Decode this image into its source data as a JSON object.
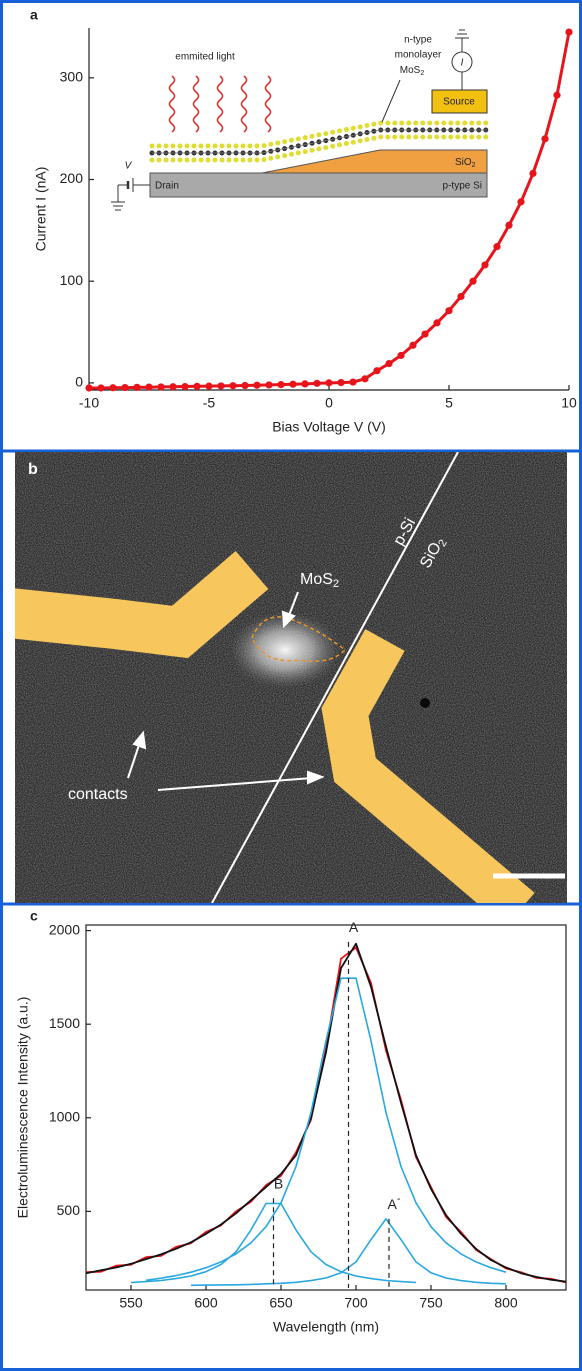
{
  "chart_data": [
    {
      "type": "scatter",
      "panel_label": "a",
      "x_label": "Bias Voltage V (V)",
      "y_label": "Current I (nA)",
      "color": "#e8141c",
      "frame": false,
      "x": [
        -10,
        -9.5,
        -9,
        -8.5,
        -8,
        -7.5,
        -7,
        -6.5,
        -6,
        -5.5,
        -5,
        -4.5,
        -4,
        -3.5,
        -3,
        -2.5,
        -2,
        -1.5,
        -1,
        -0.5,
        0,
        0.5,
        1,
        1.5,
        2,
        2.5,
        3,
        3.5,
        4,
        4.5,
        5,
        5.5,
        6,
        6.5,
        7,
        7.5,
        8,
        8.5,
        9,
        9.5,
        10
      ],
      "values": [
        -5,
        -5,
        -4.8,
        -4.6,
        -4.4,
        -4.2,
        -4,
        -3.8,
        -3.6,
        -3.4,
        -3.2,
        -3,
        -2.8,
        -2.6,
        -2.3,
        -2,
        -1.7,
        -1.3,
        -1,
        -0.5,
        0,
        0.3,
        0.8,
        4,
        12,
        19,
        27,
        37,
        48,
        59,
        71,
        85,
        100,
        116,
        134,
        155,
        178,
        206,
        240,
        283,
        345
      ],
      "xlim": [
        -10,
        10
      ],
      "ylim": [
        -7,
        349
      ],
      "xticks": [
        -10,
        -5,
        0,
        5,
        10
      ],
      "yticks": [
        0,
        100,
        200,
        300
      ],
      "inset": {
        "light": "emmited light",
        "layer_lines": [
          "n-type",
          "monolayer"
        ],
        "layer_formula": {
          "text": "MoS",
          "sub": "2"
        },
        "source": "Source",
        "oxide": {
          "text": "SiO",
          "sub": "2"
        },
        "drain": "Drain",
        "substrate": "p-type Si",
        "voltage": "V",
        "current": "I"
      }
    },
    {
      "type": "line",
      "panel_label": "c",
      "x_label": "Wavelength (nm)",
      "y_label": "Electroluminescence Intensity (a.u.)",
      "frame": true,
      "x": [
        520,
        530,
        540,
        550,
        560,
        570,
        580,
        590,
        600,
        610,
        620,
        630,
        640,
        650,
        660,
        670,
        680,
        690,
        700,
        710,
        720,
        730,
        740,
        750,
        760,
        770,
        780,
        790,
        800,
        810,
        820,
        830,
        840
      ],
      "series": [
        {
          "color": "#e8141c",
          "values": [
            175,
            178,
            210,
            215,
            255,
            262,
            310,
            330,
            390,
            425,
            500,
            552,
            640,
            690,
            815,
            990,
            1370,
            1850,
            1910,
            1720,
            1360,
            1095,
            790,
            630,
            470,
            390,
            295,
            245,
            195,
            175,
            145,
            140,
            120
          ]
        },
        {
          "color": "#111111",
          "values": [
            170,
            185,
            200,
            220,
            245,
            270,
            300,
            335,
            380,
            430,
            490,
            560,
            630,
            700,
            800,
            1000,
            1350,
            1800,
            1930,
            1700,
            1380,
            1080,
            800,
            620,
            480,
            380,
            300,
            240,
            200,
            170,
            150,
            135,
            125
          ]
        },
        {
          "color": "#29a8e0",
          "values": [
            null,
            null,
            null,
            120,
            125,
            131,
            141,
            155,
            178,
            216,
            284,
            401,
            542,
            542,
            401,
            284,
            216,
            178,
            155,
            141,
            131,
            125,
            120,
            null,
            null,
            null,
            null,
            null,
            null,
            null,
            null,
            null,
            null
          ]
        },
        {
          "color": "#29a8e0",
          "values": [
            null,
            null,
            null,
            null,
            132,
            143,
            157,
            175,
            199,
            230,
            273,
            332,
            418,
            546,
            740,
            1028,
            1412,
            1746,
            1746,
            1412,
            1028,
            740,
            546,
            418,
            332,
            273,
            230,
            199,
            175,
            null,
            null,
            null,
            null
          ]
        },
        {
          "color": "#29a8e0",
          "values": [
            null,
            null,
            null,
            null,
            null,
            null,
            null,
            105,
            106,
            107,
            108,
            110,
            113,
            116,
            121,
            130,
            144,
            172,
            230,
            349,
            460,
            349,
            230,
            172,
            144,
            130,
            121,
            116,
            113,
            null,
            null,
            null,
            null
          ]
        }
      ],
      "xlim": [
        520,
        840
      ],
      "ylim": [
        80,
        2030
      ],
      "xticks": [
        550,
        600,
        650,
        700,
        750,
        800
      ],
      "yticks": [
        500,
        1000,
        1500,
        2000
      ],
      "annotations": [
        {
          "text": "A",
          "x": 695,
          "y": 1940
        },
        {
          "text": "B",
          "x": 645,
          "y": 570
        },
        {
          "text": "A",
          "sup": "-",
          "x": 722,
          "y": 460
        }
      ]
    }
  ],
  "image_panel": {
    "panel_label": "b",
    "interface_left": "p-Si",
    "interface_right": {
      "text": "SiO",
      "sub": "2"
    },
    "flake": {
      "text": "MoS",
      "sub": "2"
    },
    "contacts": "contacts"
  }
}
